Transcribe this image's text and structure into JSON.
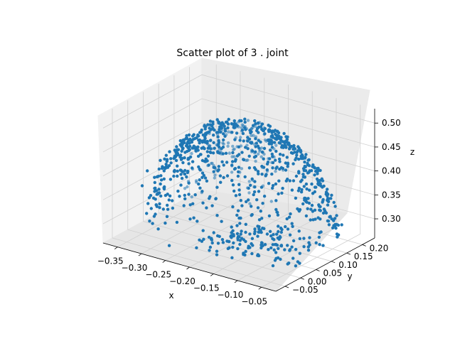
{
  "chart_data": {
    "type": "scatter",
    "projection": "3d",
    "title": "Scatter plot of 3 . joint",
    "xlabel": "x",
    "ylabel": "y",
    "zlabel": "z",
    "xlim": [
      -0.38,
      -0.02
    ],
    "ylim": [
      -0.08,
      0.24
    ],
    "zlim": [
      0.26,
      0.53
    ],
    "xticks": [
      "−0.35",
      "−0.30",
      "−0.25",
      "−0.20",
      "−0.15",
      "−0.10",
      "−0.05"
    ],
    "xtick_values": [
      -0.35,
      -0.3,
      -0.25,
      -0.2,
      -0.15,
      -0.1,
      -0.05
    ],
    "yticks": [
      "−0.05",
      "0.00",
      "0.05",
      "0.10",
      "0.15",
      "0.20"
    ],
    "ytick_values": [
      -0.05,
      0.0,
      0.05,
      0.1,
      0.15,
      0.2
    ],
    "zticks": [
      "0.30",
      "0.35",
      "0.40",
      "0.45",
      "0.50"
    ],
    "ztick_values": [
      0.3,
      0.35,
      0.4,
      0.45,
      0.5
    ],
    "grid": true,
    "marker_color": "#1f77b4",
    "points_description_shape": "hemisphere",
    "series": [
      {
        "center": [
          -0.19,
          0.08,
          0.27
        ],
        "radius": 0.235,
        "sample_points": [
          [
            -0.37,
            0.05,
            0.3
          ],
          [
            -0.35,
            0.0,
            0.36
          ],
          [
            -0.32,
            -0.03,
            0.41
          ],
          [
            -0.28,
            -0.05,
            0.45
          ],
          [
            -0.24,
            -0.06,
            0.48
          ],
          [
            -0.2,
            -0.06,
            0.5
          ],
          [
            -0.16,
            -0.05,
            0.5
          ],
          [
            -0.12,
            -0.03,
            0.49
          ],
          [
            -0.08,
            0.0,
            0.46
          ],
          [
            -0.05,
            0.04,
            0.42
          ],
          [
            -0.03,
            0.08,
            0.37
          ],
          [
            -0.03,
            0.12,
            0.32
          ],
          [
            -0.05,
            0.18,
            0.3
          ],
          [
            -0.1,
            0.2,
            0.36
          ],
          [
            -0.15,
            0.21,
            0.4
          ],
          [
            -0.22,
            0.2,
            0.42
          ],
          [
            -0.28,
            0.17,
            0.41
          ],
          [
            -0.33,
            0.12,
            0.37
          ],
          [
            -0.2,
            0.1,
            0.5
          ],
          [
            -0.15,
            0.12,
            0.49
          ],
          [
            -0.25,
            0.05,
            0.48
          ],
          [
            -0.12,
            0.0,
            0.3
          ],
          [
            -0.1,
            0.02,
            0.29
          ],
          [
            -0.08,
            0.03,
            0.3
          ],
          [
            -0.2,
            -0.04,
            0.3
          ],
          [
            -0.18,
            -0.02,
            0.31
          ],
          [
            -0.14,
            -0.01,
            0.3
          ],
          [
            -0.06,
            0.06,
            0.31
          ]
        ]
      }
    ]
  }
}
